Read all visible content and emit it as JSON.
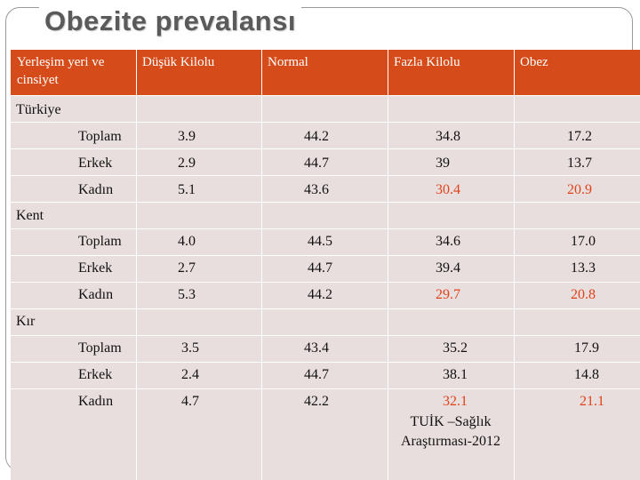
{
  "title": "Obezite prevalansı",
  "header": {
    "col1": "Yerleşim yeri ve cinsiyet",
    "col2": "Düşük Kilolu",
    "col3": "Normal",
    "col4": "Fazla Kilolu",
    "col5": "Obez"
  },
  "sections": [
    {
      "name": "Türkiye",
      "rows": [
        {
          "label": "Toplam",
          "dusuk": "3.9",
          "normal": "44.2",
          "fazla": "34.8",
          "obez": "17.2"
        },
        {
          "label": "Erkek",
          "dusuk": "2.9",
          "normal": "44.7",
          "fazla": "39",
          "obez": "13.7"
        },
        {
          "label": "Kadın",
          "dusuk": "5.1",
          "normal": "43.6",
          "fazla": "30.4",
          "obez": "20.9"
        }
      ]
    },
    {
      "name": "Kent",
      "rows": [
        {
          "label": "Toplam",
          "dusuk": "4.0",
          "normal": "44.5",
          "fazla": "34.6",
          "obez": "17.0"
        },
        {
          "label": "Erkek",
          "dusuk": "2.7",
          "normal": "44.7",
          "fazla": "39.4",
          "obez": "13.3"
        },
        {
          "label": "Kadın",
          "dusuk": "5.3",
          "normal": "44.2",
          "fazla": "29.7",
          "obez": "20.8"
        }
      ]
    },
    {
      "name": "Kır",
      "rows": [
        {
          "label": "Toplam",
          "dusuk": "3.5",
          "normal": "43.4",
          "fazla": "35.2",
          "obez": "17.9"
        },
        {
          "label": "Erkek",
          "dusuk": "2.4",
          "normal": "44.7",
          "fazla": "38.1",
          "obez": "14.8"
        },
        {
          "label": "Kadın",
          "dusuk": "4.7",
          "normal": "42.2",
          "fazla": "32.1",
          "obez": "21.1"
        }
      ]
    }
  ],
  "source_note": "TUİK –Sağlık Araştırması-2012",
  "highlight_color": "#e0421a",
  "header_color": "#d54c1a"
}
